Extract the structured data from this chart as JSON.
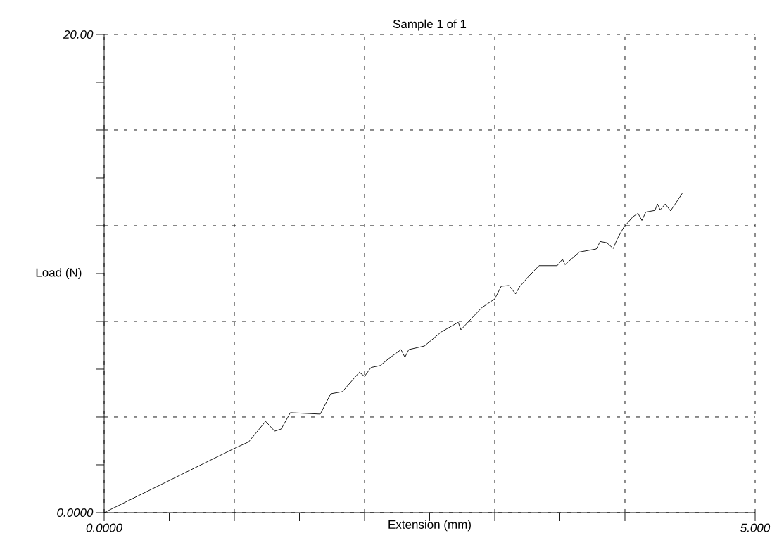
{
  "chart_data": {
    "type": "line",
    "title": "Sample 1 of 1",
    "xlabel": "Extension (mm)",
    "ylabel": "Load (N)",
    "x": [
      0,
      0.99,
      1.11,
      1.24,
      1.31,
      1.36,
      1.43,
      1.66,
      1.74,
      1.83,
      1.96,
      2.0,
      2.05,
      2.12,
      2.19,
      2.28,
      2.31,
      2.34,
      2.46,
      2.59,
      2.72,
      2.74,
      2.9,
      3.0,
      3.05,
      3.11,
      3.16,
      3.19,
      3.26,
      3.34,
      3.48,
      3.52,
      3.54,
      3.65,
      3.78,
      3.81,
      3.86,
      3.91,
      3.94,
      3.99,
      4.06,
      4.1,
      4.13,
      4.16,
      4.23,
      4.25,
      4.27,
      4.31,
      4.35,
      4.44
    ],
    "series": [
      {
        "color": "#000000",
        "values": [
          0,
          2.66,
          2.96,
          3.82,
          3.41,
          3.5,
          4.18,
          4.12,
          4.97,
          5.06,
          5.87,
          5.7,
          6.07,
          6.15,
          6.46,
          6.82,
          6.5,
          6.82,
          6.97,
          7.56,
          7.96,
          7.65,
          8.57,
          8.94,
          9.47,
          9.5,
          9.15,
          9.44,
          9.88,
          10.33,
          10.33,
          10.6,
          10.37,
          10.9,
          11.03,
          11.34,
          11.29,
          11.05,
          11.44,
          11.93,
          12.37,
          12.52,
          12.22,
          12.57,
          12.64,
          12.91,
          12.66,
          12.91,
          12.62,
          13.35
        ]
      }
    ],
    "xlim": [
      0,
      5
    ],
    "ylim": [
      0,
      20
    ],
    "xticks": [
      {
        "value": 0,
        "label": "0.0000"
      },
      {
        "value": 1,
        "label": null
      },
      {
        "value": 2,
        "label": null
      },
      {
        "value": 3,
        "label": null
      },
      {
        "value": 4,
        "label": null
      },
      {
        "value": 5,
        "label": "5.000"
      }
    ],
    "yticks": [
      {
        "value": 0,
        "label": "0.0000"
      },
      {
        "value": 4,
        "label": null
      },
      {
        "value": 8,
        "label": null
      },
      {
        "value": 12,
        "label": null
      },
      {
        "value": 16,
        "label": null
      },
      {
        "value": 20,
        "label": "20.00"
      }
    ],
    "grid": true,
    "line_style": "solid",
    "marker": "none"
  }
}
